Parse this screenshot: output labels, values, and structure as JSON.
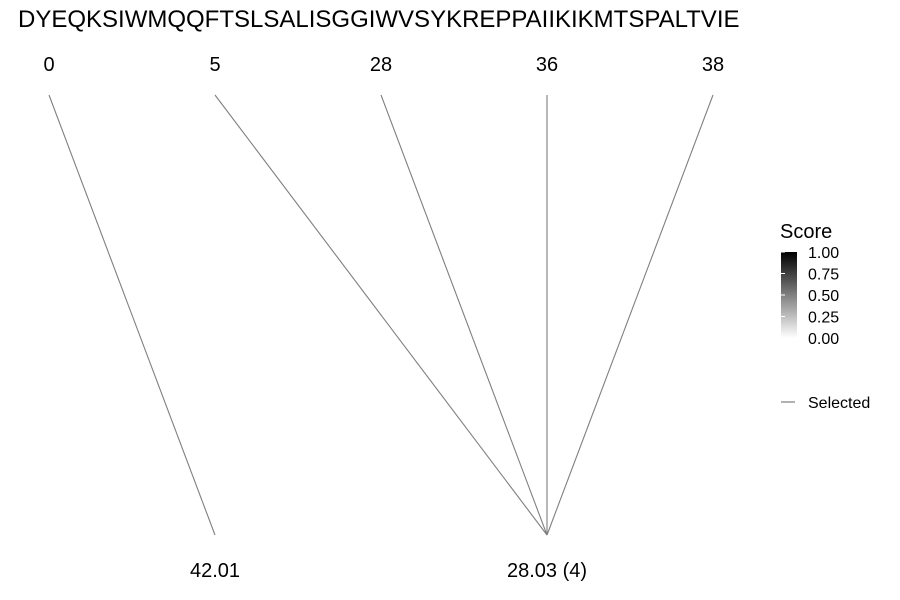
{
  "sequence": "DYEQKSIWMQQFTSLSALISGGIWVSYKREPPAIIKIKMTSPALTVIE",
  "positions": [
    "0",
    "5",
    "28",
    "36",
    "38"
  ],
  "masses": [
    "42.01",
    "28.03 (4)"
  ],
  "links": [
    {
      "position": "0",
      "mass": "42.01"
    },
    {
      "position": "5",
      "mass": "28.03 (4)"
    },
    {
      "position": "28",
      "mass": "28.03 (4)"
    },
    {
      "position": "36",
      "mass": "28.03 (4)"
    },
    {
      "position": "38",
      "mass": "28.03 (4)"
    }
  ],
  "legend": {
    "title": "Score",
    "ticks": [
      "1.00",
      "0.75",
      "0.50",
      "0.25",
      "0.00"
    ],
    "selected_label": "Selected",
    "line_color": "#7f7f7f"
  }
}
